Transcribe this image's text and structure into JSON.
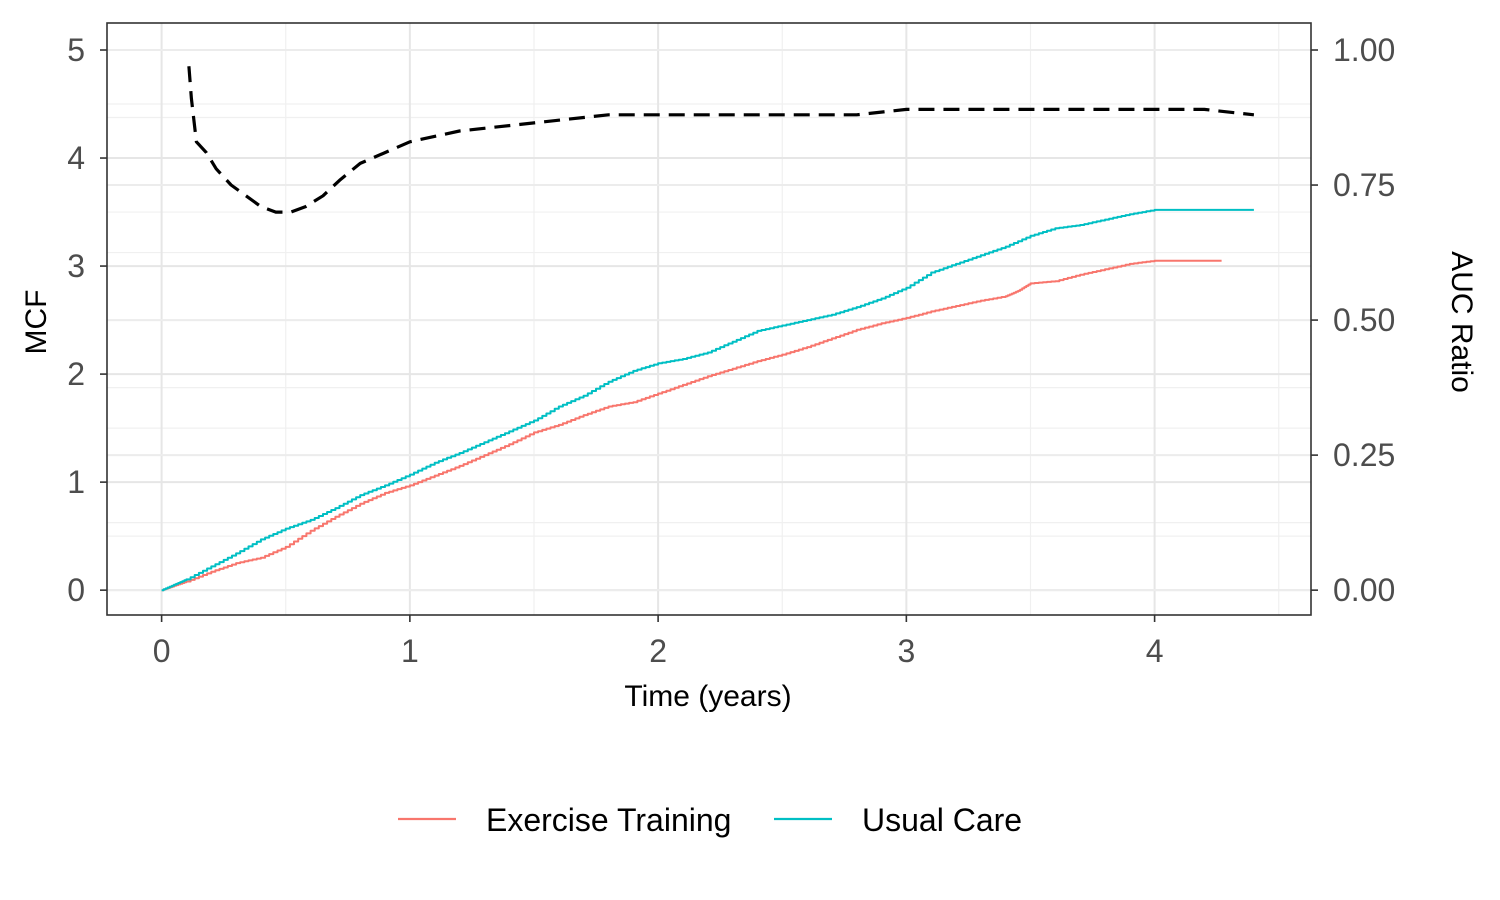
{
  "chart_data": {
    "type": "line",
    "xlabel": "Time (years)",
    "ylabel": "MCF",
    "y2label": "AUC Ratio",
    "xlim": [
      -0.22,
      4.63
    ],
    "ylim": [
      -0.23,
      5.25
    ],
    "y2lim": [
      -0.046,
      1.05
    ],
    "x_ticks": [
      0,
      1,
      2,
      3,
      4
    ],
    "x_tick_labels": [
      "0",
      "1",
      "2",
      "3",
      "4"
    ],
    "y_ticks": [
      0,
      1,
      2,
      3,
      4,
      5
    ],
    "y_tick_labels": [
      "0",
      "1",
      "2",
      "3",
      "4",
      "5"
    ],
    "y2_ticks": [
      0,
      0.25,
      0.5,
      0.75,
      1.0
    ],
    "y2_tick_labels": [
      "0.00",
      "0.25",
      "0.50",
      "0.75",
      "1.00"
    ],
    "grid": true,
    "legend_position": "bottom",
    "series": [
      {
        "name": "Exercise Training",
        "axis": "left",
        "color": "#F8766D",
        "style": "step",
        "x": [
          0,
          0.05,
          0.1,
          0.2,
          0.3,
          0.4,
          0.5,
          0.6,
          0.7,
          0.8,
          0.9,
          1.0,
          1.1,
          1.2,
          1.3,
          1.4,
          1.5,
          1.6,
          1.7,
          1.8,
          1.9,
          2.0,
          2.1,
          2.2,
          2.3,
          2.4,
          2.5,
          2.6,
          2.7,
          2.8,
          2.9,
          3.0,
          3.1,
          3.2,
          3.3,
          3.4,
          3.45,
          3.5,
          3.6,
          3.7,
          3.8,
          3.9,
          4.0,
          4.1,
          4.27
        ],
        "values": [
          0,
          0.04,
          0.08,
          0.17,
          0.25,
          0.3,
          0.4,
          0.55,
          0.68,
          0.8,
          0.9,
          0.97,
          1.06,
          1.15,
          1.25,
          1.35,
          1.46,
          1.53,
          1.62,
          1.7,
          1.74,
          1.82,
          1.9,
          1.98,
          2.05,
          2.12,
          2.18,
          2.25,
          2.33,
          2.41,
          2.47,
          2.52,
          2.58,
          2.63,
          2.68,
          2.72,
          2.77,
          2.84,
          2.86,
          2.92,
          2.97,
          3.02,
          3.05,
          3.05,
          3.05
        ]
      },
      {
        "name": "Usual Care",
        "axis": "left",
        "color": "#00BFC4",
        "style": "step",
        "x": [
          0,
          0.05,
          0.1,
          0.2,
          0.3,
          0.4,
          0.5,
          0.6,
          0.7,
          0.8,
          0.9,
          1.0,
          1.1,
          1.2,
          1.3,
          1.4,
          1.5,
          1.6,
          1.7,
          1.8,
          1.9,
          2.0,
          2.1,
          2.2,
          2.3,
          2.4,
          2.5,
          2.6,
          2.7,
          2.8,
          2.9,
          3.0,
          3.1,
          3.2,
          3.3,
          3.4,
          3.5,
          3.6,
          3.7,
          3.8,
          3.9,
          4.0,
          4.4
        ],
        "values": [
          0,
          0.05,
          0.1,
          0.22,
          0.34,
          0.47,
          0.57,
          0.65,
          0.76,
          0.88,
          0.97,
          1.07,
          1.18,
          1.27,
          1.37,
          1.47,
          1.57,
          1.7,
          1.8,
          1.93,
          2.03,
          2.1,
          2.14,
          2.2,
          2.3,
          2.4,
          2.45,
          2.5,
          2.55,
          2.62,
          2.7,
          2.8,
          2.94,
          3.02,
          3.1,
          3.18,
          3.28,
          3.35,
          3.38,
          3.43,
          3.48,
          3.52,
          3.52
        ]
      },
      {
        "name": "AUC Ratio",
        "axis": "right",
        "color": "#000000",
        "style": "dashed",
        "x": [
          0.11,
          0.12,
          0.14,
          0.18,
          0.22,
          0.28,
          0.34,
          0.4,
          0.46,
          0.52,
          0.58,
          0.65,
          0.72,
          0.8,
          0.9,
          1.0,
          1.2,
          1.4,
          1.6,
          1.8,
          2.0,
          2.2,
          2.5,
          2.8,
          3.0,
          3.2,
          3.4,
          3.6,
          3.8,
          4.0,
          4.2,
          4.4
        ],
        "values": [
          0.97,
          0.91,
          0.83,
          0.81,
          0.78,
          0.75,
          0.73,
          0.71,
          0.7,
          0.7,
          0.71,
          0.73,
          0.76,
          0.79,
          0.81,
          0.83,
          0.85,
          0.86,
          0.87,
          0.88,
          0.88,
          0.88,
          0.88,
          0.88,
          0.89,
          0.89,
          0.89,
          0.89,
          0.89,
          0.89,
          0.89,
          0.88
        ]
      }
    ]
  }
}
